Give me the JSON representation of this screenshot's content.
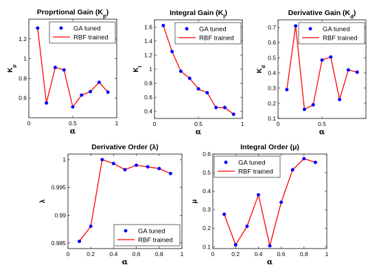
{
  "chart_data": [
    {
      "type": "line",
      "title": "Proprtional Gain (K",
      "title_sub": "p",
      "title_tail": ")",
      "xlabel": "α",
      "ylabel": "K",
      "ylabel_sub": "p",
      "xlim": [
        0,
        1
      ],
      "ylim": [
        0.4,
        1.4
      ],
      "xticks": [
        0,
        0.5,
        1
      ],
      "xtick_labels": [
        "0",
        "0.5",
        "1"
      ],
      "yticks": [
        0.6,
        0.8,
        1,
        1.2
      ],
      "ytick_labels": [
        "0.6",
        "0.8",
        "1",
        "1.2"
      ],
      "x": [
        0.1,
        0.2,
        0.3,
        0.4,
        0.5,
        0.6,
        0.7,
        0.8,
        0.9
      ],
      "series": [
        {
          "name": "GA tuned",
          "style": "markers",
          "color": "#0000ff",
          "values": [
            1.31,
            0.55,
            0.91,
            0.885,
            0.51,
            0.63,
            0.665,
            0.76,
            0.66
          ]
        },
        {
          "name": "RBF trained",
          "style": "line",
          "color": "#ff0000",
          "values": [
            1.31,
            0.55,
            0.91,
            0.885,
            0.51,
            0.63,
            0.665,
            0.76,
            0.66
          ]
        }
      ],
      "legend": "top-right"
    },
    {
      "type": "line",
      "title": "Integral Gain (K",
      "title_sub": "I",
      "title_tail": ")",
      "xlabel": "α",
      "ylabel": "K",
      "ylabel_sub": "I",
      "xlim": [
        0,
        1
      ],
      "ylim": [
        0.3,
        1.7
      ],
      "xticks": [
        0,
        0.5,
        1
      ],
      "xtick_labels": [
        "0",
        "0.5",
        "1"
      ],
      "yticks": [
        0.4,
        0.6,
        0.8,
        1,
        1.2,
        1.4,
        1.6
      ],
      "ytick_labels": [
        "0.4",
        "0.6",
        "0.8",
        "1",
        "1.2",
        "1.4",
        "1.6"
      ],
      "x": [
        0.1,
        0.2,
        0.3,
        0.4,
        0.5,
        0.6,
        0.7,
        0.8,
        0.9
      ],
      "series": [
        {
          "name": "GA tuned",
          "style": "markers",
          "color": "#0000ff",
          "values": [
            1.62,
            1.25,
            0.97,
            0.87,
            0.72,
            0.665,
            0.455,
            0.455,
            0.36
          ]
        },
        {
          "name": "RBF trained",
          "style": "line",
          "color": "#ff0000",
          "values": [
            1.62,
            1.25,
            0.97,
            0.87,
            0.72,
            0.665,
            0.455,
            0.455,
            0.36
          ]
        }
      ],
      "legend": "top-right"
    },
    {
      "type": "line",
      "title": "Derivative Gain (K",
      "title_sub": "d",
      "title_tail": ")",
      "xlabel": "α",
      "ylabel": "K",
      "ylabel_sub": "d",
      "xlim": [
        0,
        1
      ],
      "ylim": [
        0.1,
        0.75
      ],
      "xticks": [
        0,
        0.5
      ],
      "xtick_labels": [
        "0",
        "0.5"
      ],
      "yticks": [
        0.1,
        0.2,
        0.3,
        0.4,
        0.5,
        0.6,
        0.7
      ],
      "ytick_labels": [
        "0.1",
        "0.2",
        "0.3",
        "0.4",
        "0.5",
        "0.6",
        "0.7"
      ],
      "x": [
        0.1,
        0.2,
        0.3,
        0.4,
        0.5,
        0.6,
        0.7,
        0.8,
        0.9
      ],
      "series": [
        {
          "name": "GA tuned",
          "style": "markers",
          "color": "#0000ff",
          "values": [
            0.29,
            0.71,
            0.16,
            0.19,
            0.485,
            0.505,
            0.225,
            0.42,
            0.405
          ]
        },
        {
          "name": "RBF trained",
          "style": "line",
          "color": "#ff0000",
          "values": [
            0.29,
            0.71,
            0.16,
            0.19,
            0.485,
            0.505,
            0.225,
            0.42,
            0.405
          ]
        }
      ],
      "legend": "top-right"
    },
    {
      "type": "line",
      "title": "Derivative Order (λ)",
      "title_sub": "",
      "title_tail": "",
      "xlabel": "α",
      "ylabel": "λ",
      "ylabel_sub": "",
      "xlim": [
        0,
        1
      ],
      "ylim": [
        0.984,
        1.001
      ],
      "xticks": [
        0,
        0.2,
        0.4,
        0.6,
        0.8,
        1
      ],
      "xtick_labels": [
        "0",
        "0.2",
        "0.4",
        "0.6",
        "0.8",
        "1"
      ],
      "yticks": [
        0.985,
        0.99,
        0.995,
        1
      ],
      "ytick_labels": [
        "0.985",
        "0.99",
        "0.995",
        "1"
      ],
      "x": [
        0.1,
        0.2,
        0.3,
        0.4,
        0.5,
        0.6,
        0.7,
        0.8,
        0.9
      ],
      "series": [
        {
          "name": "GA tuned",
          "style": "markers",
          "color": "#0000ff",
          "values": [
            0.9853,
            0.988,
            1.0,
            0.9993,
            0.9982,
            0.999,
            0.9987,
            0.9984,
            0.9975
          ]
        },
        {
          "name": "RBF trained",
          "style": "line",
          "color": "#ff0000",
          "values": [
            0.9853,
            0.988,
            1.0,
            0.9993,
            0.9982,
            0.999,
            0.9987,
            0.9984,
            0.9975
          ]
        }
      ],
      "legend": "bottom-right"
    },
    {
      "type": "line",
      "title": "Integral Order (μ)",
      "title_sub": "",
      "title_tail": "",
      "xlabel": "α",
      "ylabel": "μ",
      "ylabel_sub": "",
      "xlim": [
        0,
        1
      ],
      "ylim": [
        0.09,
        0.6
      ],
      "xticks": [
        0,
        0.2,
        0.4,
        0.6,
        0.8,
        1
      ],
      "xtick_labels": [
        "0",
        "0.2",
        "0.4",
        "0.6",
        "0.8",
        "1"
      ],
      "yticks": [
        0.1,
        0.2,
        0.3,
        0.4,
        0.5,
        0.6
      ],
      "ytick_labels": [
        "0.1",
        "0.2",
        "0.3",
        "0.4",
        "0.5",
        "0.6"
      ],
      "x": [
        0.1,
        0.2,
        0.3,
        0.4,
        0.5,
        0.6,
        0.7,
        0.8,
        0.9
      ],
      "series": [
        {
          "name": "GA tuned",
          "style": "markers",
          "color": "#0000ff",
          "values": [
            0.275,
            0.11,
            0.21,
            0.38,
            0.105,
            0.34,
            0.515,
            0.575,
            0.555
          ]
        },
        {
          "name": "RBF trained",
          "style": "line",
          "color": "#ff0000",
          "values": [
            0.275,
            0.11,
            0.21,
            0.38,
            0.105,
            0.34,
            0.515,
            0.575,
            0.555
          ]
        }
      ],
      "legend": "top-left"
    }
  ]
}
